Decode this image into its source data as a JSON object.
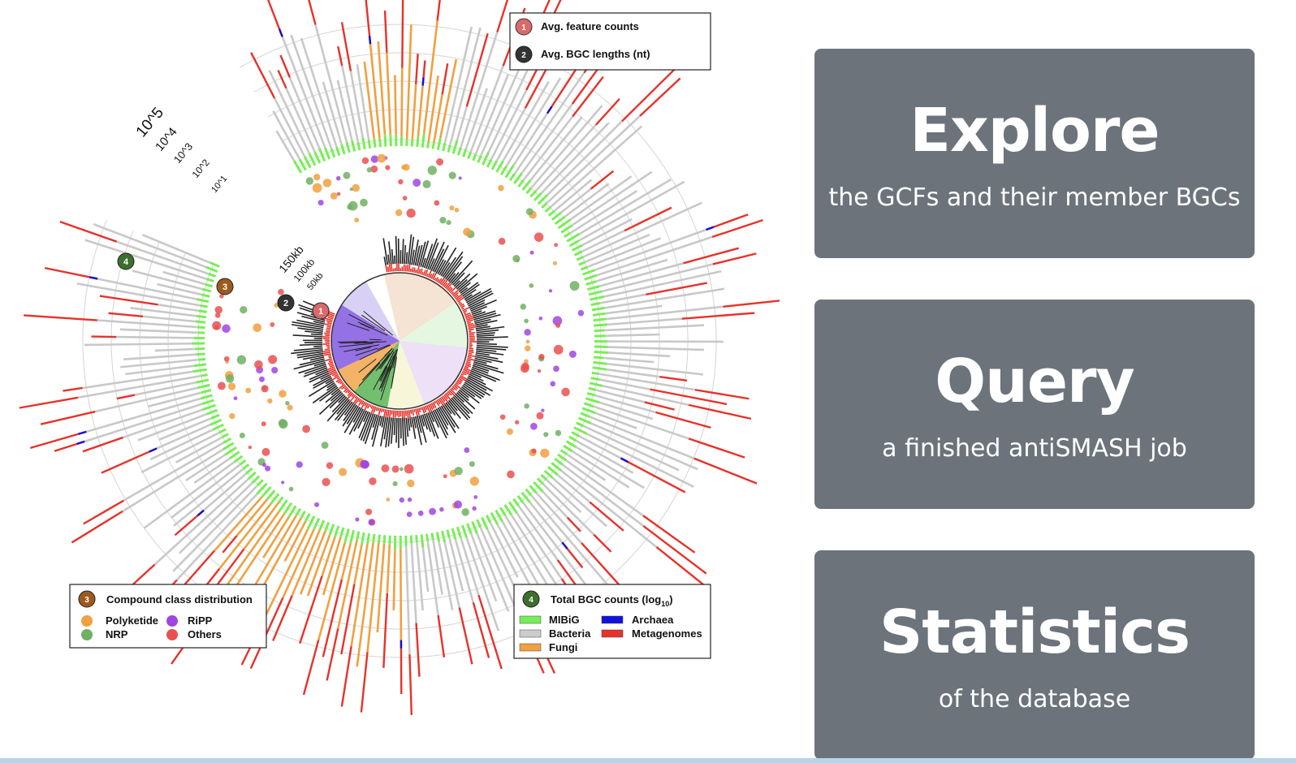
{
  "figure": {
    "legend_top": {
      "items": [
        {
          "num": "1",
          "label": "Avg. feature counts",
          "color": "#d9696a"
        },
        {
          "num": "2",
          "label": "Avg. BGC lengths (nt)",
          "color": "#333333"
        }
      ]
    },
    "legend_compound": {
      "num": "3",
      "title": "Compound class distribution",
      "num_color": "#9c5a1d",
      "items": [
        {
          "label": "Polyketide",
          "color": "#f0a040"
        },
        {
          "label": "NRP",
          "color": "#6fb062"
        },
        {
          "label": "RiPP",
          "color": "#a045e0"
        },
        {
          "label": "Others",
          "color": "#ea5050"
        }
      ]
    },
    "legend_counts": {
      "num": "4",
      "title": "Total BGC counts (log",
      "title_sub": "10",
      "title_end": ")",
      "num_color": "#3d6e2e",
      "items": [
        {
          "label": "MIBiG",
          "color": "#77ee55"
        },
        {
          "label": "Archaea",
          "color": "#1111dd"
        },
        {
          "label": "Bacteria",
          "color": "#cccccc"
        },
        {
          "label": "Metagenomes",
          "color": "#e6322a"
        },
        {
          "label": "Fungi",
          "color": "#f0a040"
        }
      ]
    },
    "outer_scale": [
      "10^5",
      "10^4",
      "10^3",
      "10^2",
      "10^1"
    ],
    "inner_scale": [
      "150kb",
      "100kb",
      "50kb"
    ],
    "ring_badges": [
      "4",
      "3",
      "2",
      "1"
    ]
  },
  "cards": [
    {
      "title": "Explore",
      "subtitle": "the GCFs and their member BGCs"
    },
    {
      "title": "Query",
      "subtitle": "a finished antiSMASH job"
    },
    {
      "title": "Statistics",
      "subtitle": "of the database"
    }
  ]
}
